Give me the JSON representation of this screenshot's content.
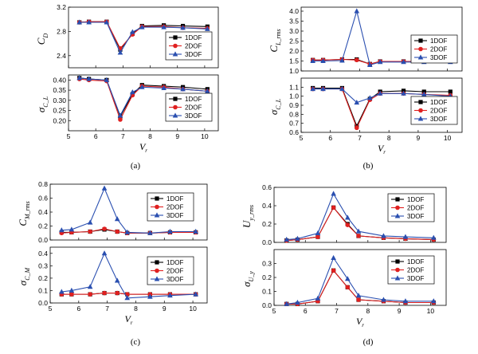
{
  "figure": {
    "series_names": [
      "1DOF",
      "2DOF",
      "3DOF"
    ],
    "colors": {
      "1DOF": "#000000",
      "2DOF": "#e02020",
      "3DOF": "#2a4fb0"
    },
    "x_values": [
      5.4,
      5.75,
      6.4,
      6.9,
      7.35,
      7.7,
      8.5,
      9.2,
      10.1
    ]
  },
  "chart_data": [
    {
      "id": "a-top",
      "type": "line",
      "panel": "(a)",
      "ylabel": "C",
      "ylabel_sub": "D",
      "xlabel": "",
      "xlim": [
        5,
        10.5
      ],
      "ylim": [
        2.2,
        3.2
      ],
      "yticks": [
        2.4,
        2.8,
        3.2
      ],
      "ytick_labels": [
        "2.4",
        "2.8",
        "3.2"
      ],
      "xticks": [
        5,
        6,
        7,
        8,
        9,
        10
      ],
      "xtick_labels": [
        "",
        "",
        "",
        "",
        "",
        ""
      ],
      "legend": "bottom-right",
      "series": [
        {
          "name": "1DOF",
          "values": [
            2.95,
            2.96,
            2.96,
            2.5,
            2.76,
            2.89,
            2.9,
            2.89,
            2.88
          ]
        },
        {
          "name": "2DOF",
          "values": [
            2.95,
            2.96,
            2.96,
            2.52,
            2.75,
            2.88,
            2.88,
            2.86,
            2.85
          ]
        },
        {
          "name": "3DOF",
          "values": [
            2.95,
            2.95,
            2.95,
            2.45,
            2.79,
            2.87,
            2.87,
            2.86,
            2.84
          ]
        }
      ]
    },
    {
      "id": "a-bottom",
      "type": "line",
      "panel": "(a)",
      "ylabel": "σ",
      "ylabel_sub": "C_L",
      "xlabel": "V",
      "xlabel_sub": "r",
      "xlim": [
        5,
        10.5
      ],
      "ylim": [
        0.15,
        0.425
      ],
      "yticks": [
        0.2,
        0.25,
        0.3,
        0.35,
        0.4
      ],
      "ytick_labels": [
        "0.20",
        "0.25",
        "0.30",
        "0.35",
        "0.40"
      ],
      "xticks": [
        5,
        6,
        7,
        8,
        9,
        10
      ],
      "xtick_labels": [
        "5",
        "6",
        "7",
        "8",
        "9",
        "10"
      ],
      "legend": "bottom-right",
      "series": [
        {
          "name": "1DOF",
          "values": [
            0.41,
            0.405,
            0.4,
            0.22,
            0.33,
            0.375,
            0.37,
            0.365,
            0.355
          ]
        },
        {
          "name": "2DOF",
          "values": [
            0.405,
            0.4,
            0.395,
            0.205,
            0.325,
            0.37,
            0.365,
            0.355,
            0.345
          ]
        },
        {
          "name": "3DOF",
          "values": [
            0.41,
            0.405,
            0.4,
            0.225,
            0.34,
            0.365,
            0.36,
            0.355,
            0.345
          ]
        }
      ]
    },
    {
      "id": "b-top",
      "type": "line",
      "panel": "(b)",
      "ylabel": "C",
      "ylabel_sub": "L_rms",
      "xlabel": "",
      "xlim": [
        5,
        10.5
      ],
      "ylim": [
        1.0,
        4.2
      ],
      "yticks": [
        1.0,
        1.5,
        2.0,
        2.5,
        3.0,
        3.5,
        4.0
      ],
      "ytick_labels": [
        "1.0",
        "1.5",
        "2.0",
        "2.5",
        "3.0",
        "3.5",
        "4.0"
      ],
      "xticks": [
        5,
        6,
        7,
        8,
        9,
        10
      ],
      "xtick_labels": [
        "",
        "",
        "",
        "",
        "",
        ""
      ],
      "legend": "right",
      "series": [
        {
          "name": "1DOF",
          "values": [
            1.55,
            1.55,
            1.58,
            1.58,
            1.35,
            1.48,
            1.48,
            1.48,
            1.48
          ]
        },
        {
          "name": "2DOF",
          "values": [
            1.55,
            1.55,
            1.58,
            1.55,
            1.35,
            1.48,
            1.48,
            1.48,
            1.48
          ]
        },
        {
          "name": "3DOF",
          "values": [
            1.5,
            1.5,
            1.52,
            4.0,
            1.3,
            1.45,
            1.45,
            1.45,
            1.45
          ]
        }
      ]
    },
    {
      "id": "b-bottom",
      "type": "line",
      "panel": "(b)",
      "ylabel": "σ",
      "ylabel_sub": "C_L",
      "xlabel": "V",
      "xlabel_sub": "r",
      "xlim": [
        5,
        10.5
      ],
      "ylim": [
        0.6,
        1.2
      ],
      "yticks": [
        0.6,
        0.7,
        0.8,
        0.9,
        1.0,
        1.1
      ],
      "ytick_labels": [
        "0.6",
        "0.7",
        "0.8",
        "0.9",
        "1.0",
        "1.1"
      ],
      "xticks": [
        5,
        6,
        7,
        8,
        9,
        10
      ],
      "xtick_labels": [
        "5",
        "6",
        "7",
        "8",
        "9",
        "10"
      ],
      "legend": "bottom-right",
      "series": [
        {
          "name": "1DOF",
          "values": [
            1.09,
            1.09,
            1.09,
            0.67,
            0.97,
            1.05,
            1.06,
            1.05,
            1.05
          ]
        },
        {
          "name": "2DOF",
          "values": [
            1.08,
            1.08,
            1.08,
            0.65,
            0.96,
            1.03,
            1.03,
            1.02,
            1.01
          ]
        },
        {
          "name": "3DOF",
          "values": [
            1.08,
            1.08,
            1.08,
            0.93,
            0.98,
            1.03,
            1.03,
            1.02,
            1.0
          ]
        }
      ]
    },
    {
      "id": "c-top",
      "type": "line",
      "panel": "(c)",
      "ylabel": "C",
      "ylabel_sub": "M_rms",
      "xlabel": "",
      "xlim": [
        5,
        10.5
      ],
      "ylim": [
        0,
        0.8
      ],
      "yticks": [
        0.0,
        0.2,
        0.4,
        0.6,
        0.8
      ],
      "ytick_labels": [
        "0.0",
        "0.2",
        "0.4",
        "0.6",
        "0.8"
      ],
      "xticks": [
        5,
        6,
        7,
        8,
        9,
        10
      ],
      "xtick_labels": [
        "",
        "",
        "",
        "",
        "",
        ""
      ],
      "legend": "right",
      "series": [
        {
          "name": "1DOF",
          "values": [
            0.11,
            0.11,
            0.12,
            0.15,
            0.12,
            0.1,
            0.1,
            0.11,
            0.11
          ]
        },
        {
          "name": "2DOF",
          "values": [
            0.1,
            0.11,
            0.12,
            0.16,
            0.12,
            0.1,
            0.1,
            0.11,
            0.11
          ]
        },
        {
          "name": "3DOF",
          "values": [
            0.14,
            0.15,
            0.25,
            0.74,
            0.3,
            0.11,
            0.1,
            0.12,
            0.12
          ]
        }
      ]
    },
    {
      "id": "c-bottom",
      "type": "line",
      "panel": "(c)",
      "ylabel": "σ",
      "ylabel_sub": "C_M",
      "xlabel": "V",
      "xlabel_sub": "r",
      "xlim": [
        5,
        10.5
      ],
      "ylim": [
        0,
        0.45
      ],
      "yticks": [
        0.0,
        0.1,
        0.2,
        0.3,
        0.4
      ],
      "ytick_labels": [
        "0.0",
        "0.1",
        "0.2",
        "0.3",
        "0.4"
      ],
      "xticks": [
        5,
        6,
        7,
        8,
        9,
        10
      ],
      "xtick_labels": [
        "5",
        "6",
        "7",
        "8",
        "9",
        "10"
      ],
      "legend": "right",
      "series": [
        {
          "name": "1DOF",
          "values": [
            0.07,
            0.07,
            0.07,
            0.08,
            0.08,
            0.07,
            0.07,
            0.07,
            0.07
          ]
        },
        {
          "name": "2DOF",
          "values": [
            0.07,
            0.07,
            0.07,
            0.08,
            0.08,
            0.07,
            0.07,
            0.07,
            0.07
          ]
        },
        {
          "name": "3DOF",
          "values": [
            0.09,
            0.1,
            0.13,
            0.4,
            0.18,
            0.04,
            0.05,
            0.06,
            0.07
          ]
        }
      ]
    },
    {
      "id": "d-top",
      "type": "line",
      "panel": "(d)",
      "ylabel": "U",
      "ylabel_sub": "y_rms",
      "xlabel": "",
      "xlim": [
        5,
        10.5
      ],
      "ylim": [
        0,
        0.6
      ],
      "yticks": [
        0.0,
        0.2,
        0.4,
        0.6
      ],
      "ytick_labels": [
        "0.0",
        "0.2",
        "0.4",
        "0.6"
      ],
      "xticks": [
        5,
        6,
        7,
        8,
        9,
        10
      ],
      "xtick_labels": [
        "",
        "",
        "",
        "",
        "",
        ""
      ],
      "legend": "top-right",
      "series": [
        {
          "name": "1DOF",
          "values": [
            0.02,
            0.03,
            0.06,
            0.38,
            0.2,
            0.07,
            0.05,
            0.04,
            0.03
          ]
        },
        {
          "name": "2DOF",
          "values": [
            0.02,
            0.03,
            0.06,
            0.38,
            0.19,
            0.07,
            0.05,
            0.04,
            0.03
          ]
        },
        {
          "name": "3DOF",
          "values": [
            0.03,
            0.04,
            0.1,
            0.53,
            0.27,
            0.12,
            0.07,
            0.06,
            0.05
          ]
        }
      ]
    },
    {
      "id": "d-bottom",
      "type": "line",
      "panel": "(d)",
      "ylabel": "σ",
      "ylabel_sub": "U_y",
      "xlabel": "V",
      "xlabel_sub": "r",
      "xlim": [
        5,
        10.5
      ],
      "ylim": [
        0,
        0.4
      ],
      "yticks": [
        0.0,
        0.1,
        0.2,
        0.3
      ],
      "ytick_labels": [
        "0.0",
        "0.1",
        "0.2",
        "0.3"
      ],
      "xticks": [
        5,
        6,
        7,
        8,
        9,
        10
      ],
      "xtick_labels": [
        "5",
        "6",
        "7",
        "8",
        "9",
        "10"
      ],
      "legend": "right",
      "series": [
        {
          "name": "1DOF",
          "values": [
            0.01,
            0.01,
            0.03,
            0.25,
            0.13,
            0.04,
            0.03,
            0.02,
            0.02
          ]
        },
        {
          "name": "2DOF",
          "values": [
            0.01,
            0.01,
            0.03,
            0.25,
            0.13,
            0.04,
            0.03,
            0.02,
            0.02
          ]
        },
        {
          "name": "3DOF",
          "values": [
            0.01,
            0.02,
            0.05,
            0.34,
            0.19,
            0.07,
            0.04,
            0.03,
            0.03
          ]
        }
      ]
    }
  ]
}
